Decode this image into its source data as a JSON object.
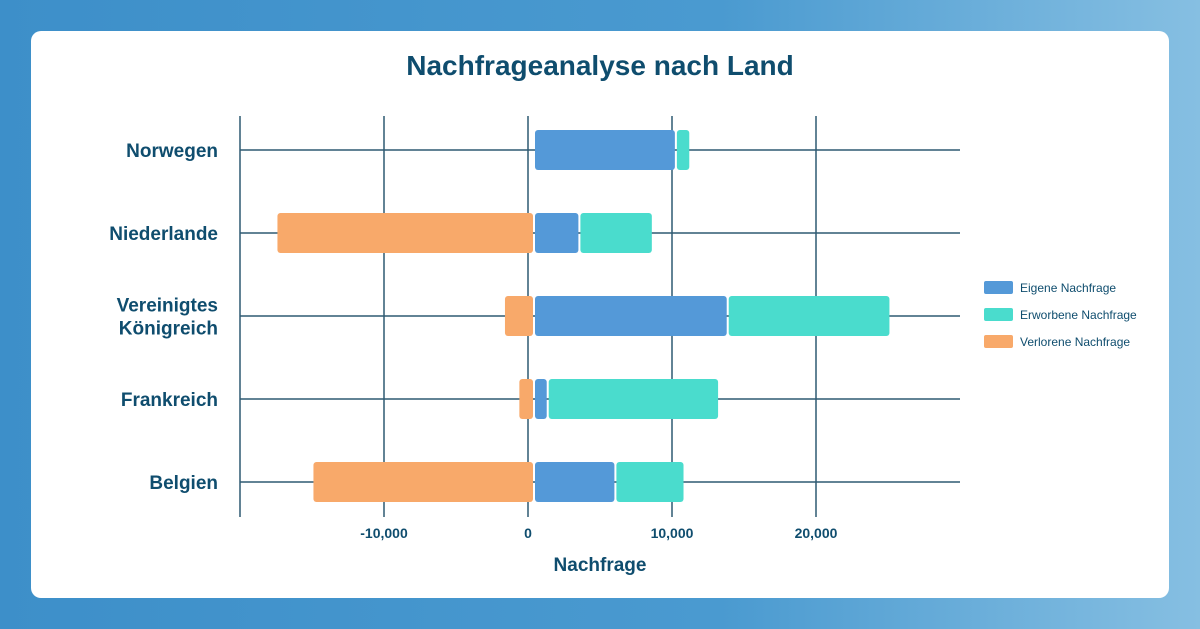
{
  "chart_data": {
    "type": "bar",
    "orientation": "horizontal",
    "stacked": true,
    "title": "Nachfrageanalyse nach Land",
    "xlabel": "Nachfrage",
    "ylabel": "",
    "xlim": [
      -20000,
      30000
    ],
    "xticks": [
      -10000,
      0,
      10000,
      20000
    ],
    "xtick_labels": [
      "-10,000",
      "0",
      "10,000",
      "20,000"
    ],
    "grid": true,
    "legend_position": "right",
    "categories": [
      {
        "label": "Norwegen",
        "lines": [
          "Norwegen"
        ]
      },
      {
        "label": "Niederlande",
        "lines": [
          "Niederlande"
        ]
      },
      {
        "label": "Vereinigtes Königreich",
        "lines": [
          "Vereinigtes",
          "Königreich"
        ]
      },
      {
        "label": "Frankreich",
        "lines": [
          "Frankreich"
        ]
      },
      {
        "label": "Belgien",
        "lines": [
          "Belgien"
        ]
      }
    ],
    "series": [
      {
        "name": "Eigene Nachfrage",
        "color": "#5499d8",
        "values": [
          10200,
          3500,
          13800,
          1300,
          6000
        ]
      },
      {
        "name": "Erworbene Nachfrage",
        "color": "#4adccd",
        "values": [
          1000,
          5100,
          11300,
          11900,
          4800
        ]
      },
      {
        "name": "Verlorene Nachfrage",
        "color": "#f8a96a",
        "values": [
          0,
          -17400,
          -1600,
          -600,
          -14900
        ]
      }
    ]
  }
}
